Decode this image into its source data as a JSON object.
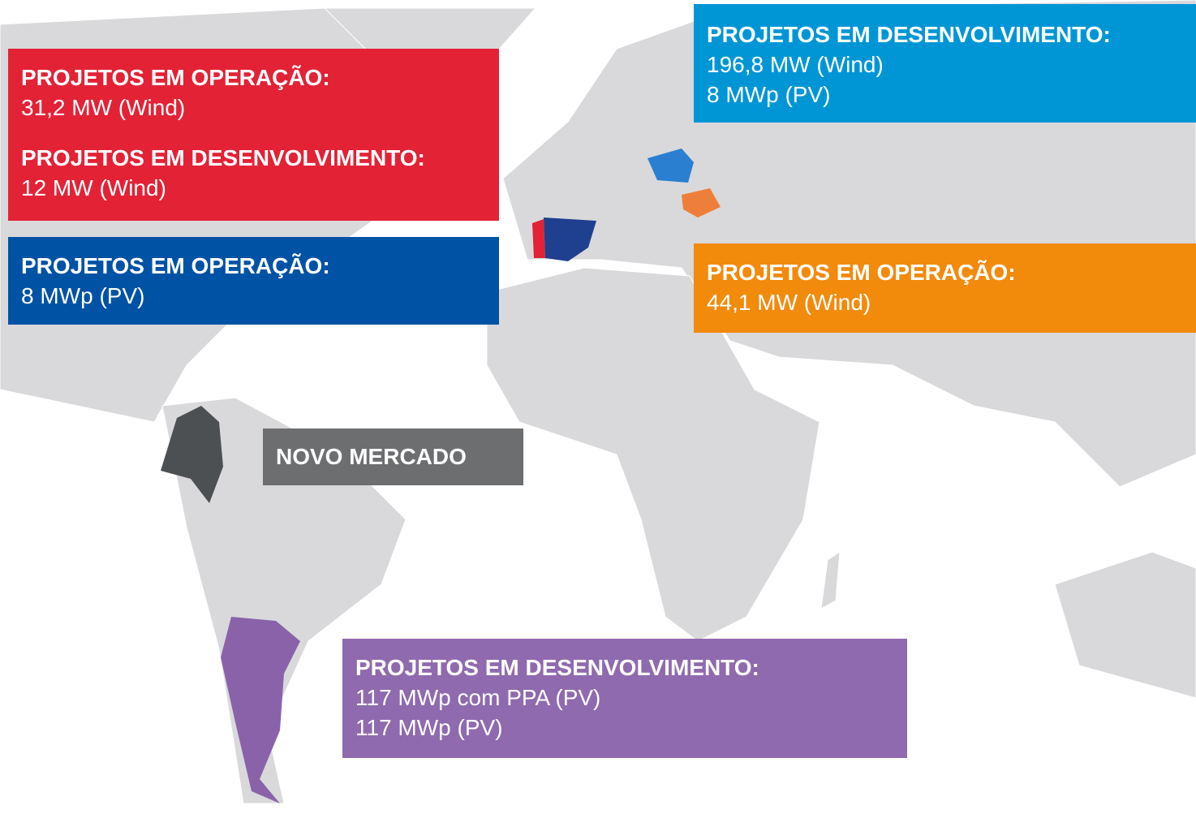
{
  "panels": [
    {
      "sections": [
        {
          "heading": "PROJETOS EM OPERAÇÃO:",
          "lines": [
            "31,2 MW (Wind)"
          ]
        },
        {
          "heading": "PROJETOS EM DESENVOLVIMENTO:",
          "lines": [
            "12 MW (Wind)"
          ]
        }
      ]
    },
    {
      "sections": [
        {
          "heading": "PROJETOS EM OPERAÇÃO:",
          "lines": [
            "8 MWp (PV)"
          ]
        }
      ]
    },
    {
      "sections": [
        {
          "heading": "PROJETOS EM DESENVOLVIMENTO:",
          "lines": [
            "196,8 MW (Wind)",
            "8 MWp (PV)"
          ]
        }
      ]
    },
    {
      "sections": [
        {
          "heading": "PROJETOS EM OPERAÇÃO:",
          "lines": [
            "44,1 MW (Wind)"
          ]
        }
      ]
    },
    {
      "sections": [
        {
          "heading": "NOVO MERCADO",
          "lines": []
        }
      ]
    },
    {
      "sections": [
        {
          "heading": "PROJETOS EM DESENVOLVIMENTO:",
          "lines": [
            "117 MWp com PPA (PV)",
            "117 MWp (PV)"
          ]
        }
      ]
    }
  ]
}
